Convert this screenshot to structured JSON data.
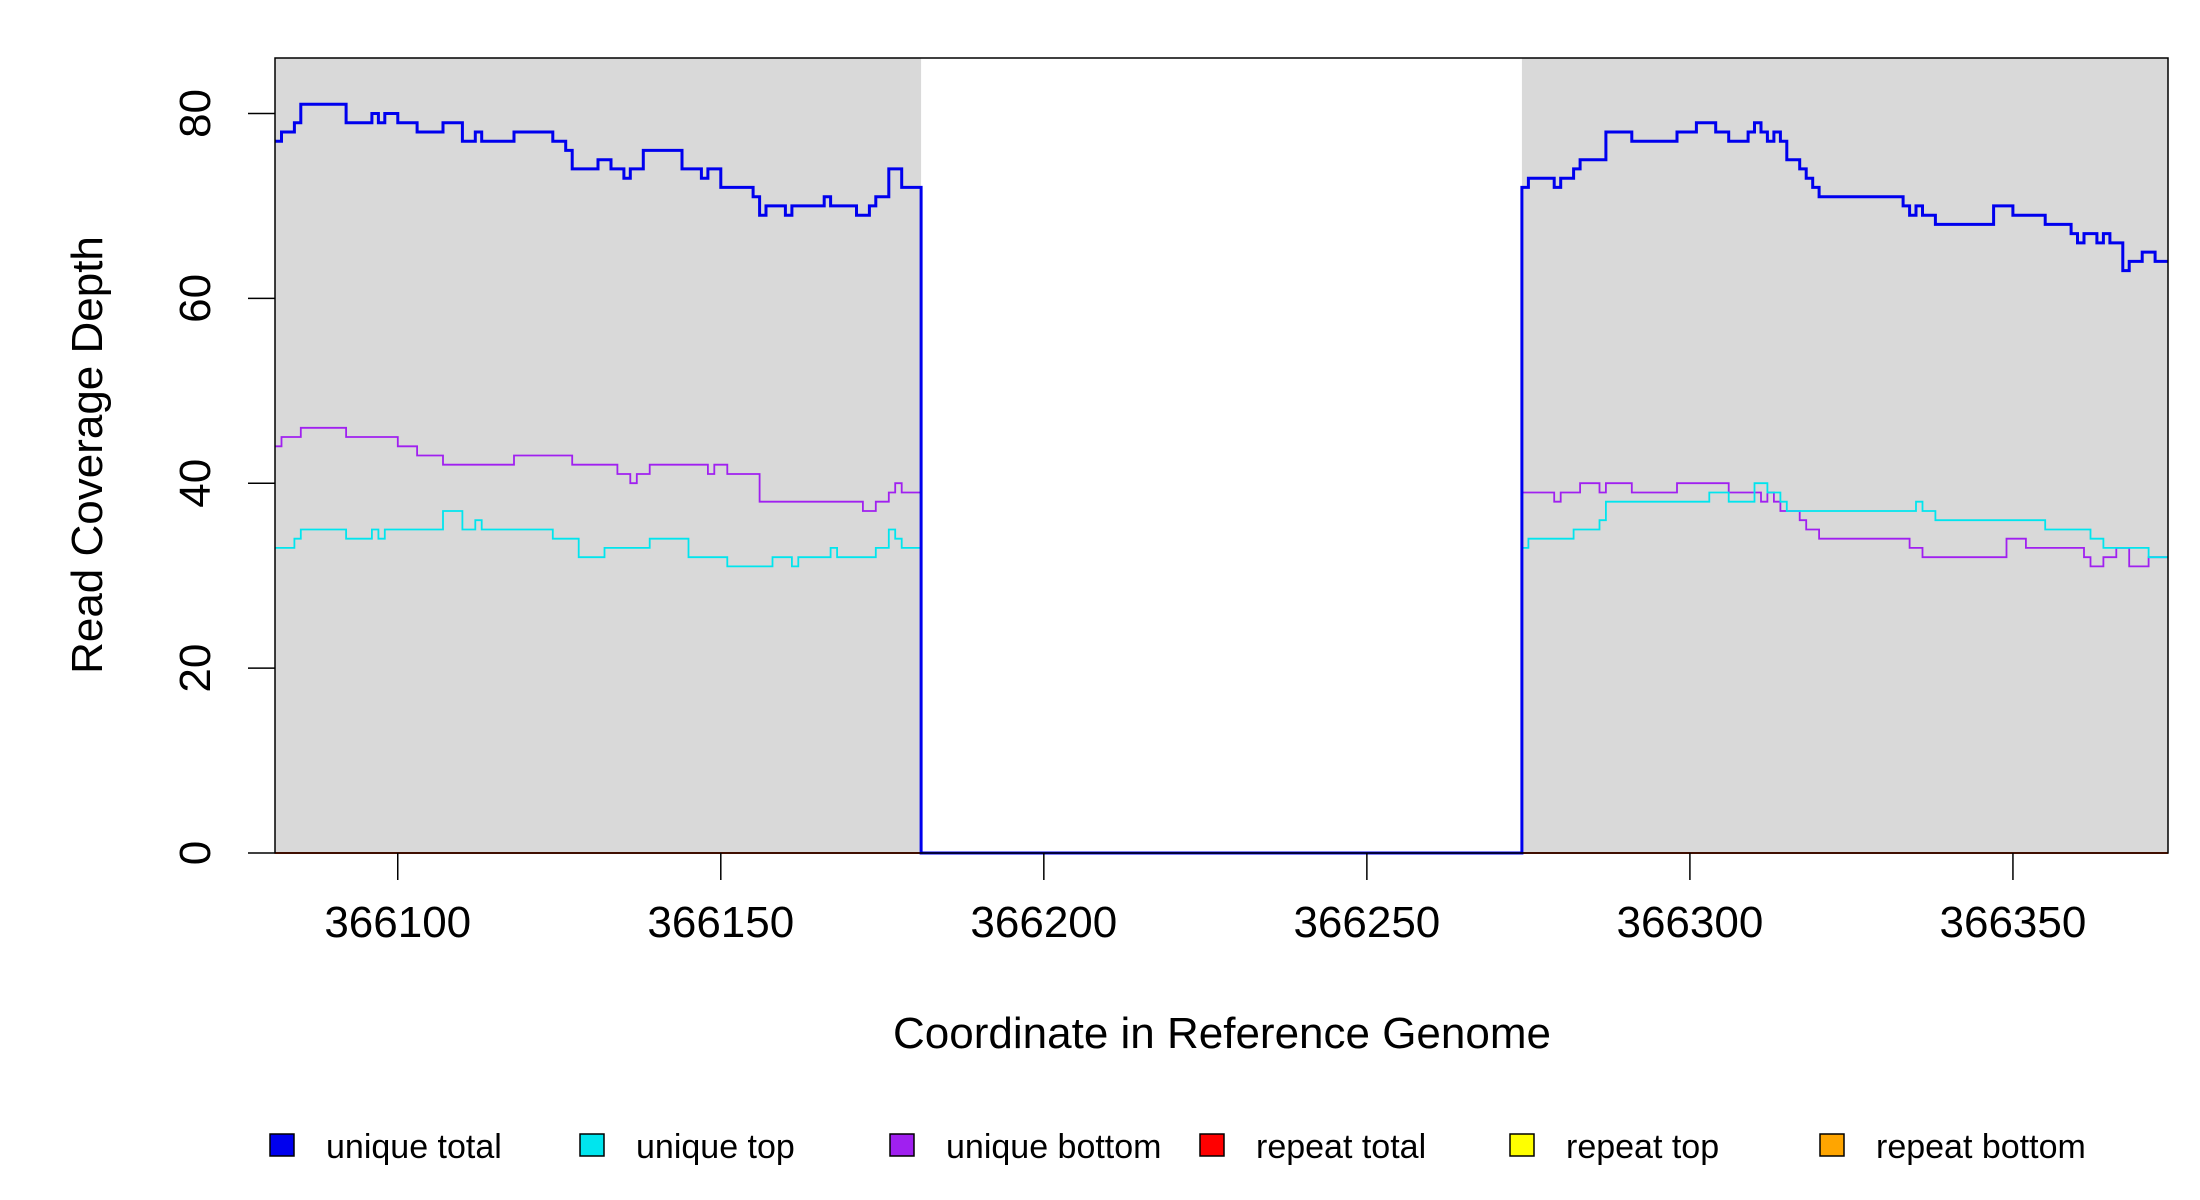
{
  "chart_data": {
    "type": "line",
    "title": "",
    "xlabel": "Coordinate in Reference Genome",
    "ylabel": "Read Coverage Depth",
    "xlim": [
      366081,
      366374
    ],
    "ylim": [
      0,
      86
    ],
    "x_ticks": [
      366100,
      366150,
      366200,
      366250,
      366300,
      366350
    ],
    "x_tick_labels": [
      "366100",
      "366150",
      "366200",
      "366250",
      "366300",
      "366350"
    ],
    "y_ticks": [
      0,
      20,
      40,
      60,
      80
    ],
    "y_tick_labels": [
      "0",
      "20",
      "40",
      "60",
      "80"
    ],
    "grid": false,
    "legend_position": "bottom",
    "background_shaded_ranges": [
      [
        366081,
        366181
      ],
      [
        366274,
        366374
      ]
    ],
    "shading_color": "#d9d9d9",
    "series": [
      {
        "name": "unique total",
        "color": "#0000ee",
        "points": [
          [
            366081,
            77
          ],
          [
            366082,
            78
          ],
          [
            366084,
            79
          ],
          [
            366085,
            81
          ],
          [
            366092,
            79
          ],
          [
            366096,
            80
          ],
          [
            366097,
            79
          ],
          [
            366098,
            80
          ],
          [
            366100,
            79
          ],
          [
            366103,
            78
          ],
          [
            366107,
            79
          ],
          [
            366110,
            77
          ],
          [
            366112,
            78
          ],
          [
            366113,
            77
          ],
          [
            366118,
            78
          ],
          [
            366124,
            77
          ],
          [
            366126,
            76
          ],
          [
            366127,
            74
          ],
          [
            366131,
            75
          ],
          [
            366133,
            74
          ],
          [
            366135,
            73
          ],
          [
            366136,
            74
          ],
          [
            366138,
            76
          ],
          [
            366144,
            74
          ],
          [
            366147,
            73
          ],
          [
            366148,
            74
          ],
          [
            366150,
            72
          ],
          [
            366155,
            71
          ],
          [
            366156,
            69
          ],
          [
            366157,
            70
          ],
          [
            366160,
            69
          ],
          [
            366161,
            70
          ],
          [
            366166,
            71
          ],
          [
            366167,
            70
          ],
          [
            366171,
            69
          ],
          [
            366173,
            70
          ],
          [
            366174,
            71
          ],
          [
            366176,
            74
          ],
          [
            366178,
            72
          ],
          [
            366180,
            72
          ],
          [
            366181,
            0
          ],
          [
            366273,
            0
          ],
          [
            366274,
            72
          ],
          [
            366275,
            73
          ],
          [
            366279,
            72
          ],
          [
            366280,
            73
          ],
          [
            366282,
            74
          ],
          [
            366283,
            75
          ],
          [
            366287,
            78
          ],
          [
            366291,
            77
          ],
          [
            366298,
            78
          ],
          [
            366301,
            79
          ],
          [
            366304,
            78
          ],
          [
            366306,
            77
          ],
          [
            366309,
            78
          ],
          [
            366310,
            79
          ],
          [
            366311,
            78
          ],
          [
            366312,
            77
          ],
          [
            366313,
            78
          ],
          [
            366314,
            77
          ],
          [
            366315,
            75
          ],
          [
            366317,
            74
          ],
          [
            366318,
            73
          ],
          [
            366319,
            72
          ],
          [
            366320,
            71
          ],
          [
            366333,
            70
          ],
          [
            366334,
            69
          ],
          [
            366335,
            70
          ],
          [
            366336,
            69
          ],
          [
            366338,
            68
          ],
          [
            366347,
            70
          ],
          [
            366350,
            69
          ],
          [
            366355,
            68
          ],
          [
            366359,
            67
          ],
          [
            366360,
            66
          ],
          [
            366361,
            67
          ],
          [
            366363,
            66
          ],
          [
            366364,
            67
          ],
          [
            366365,
            66
          ],
          [
            366367,
            63
          ],
          [
            366368,
            64
          ],
          [
            366370,
            65
          ],
          [
            366372,
            64
          ],
          [
            366374,
            64
          ]
        ]
      },
      {
        "name": "unique top",
        "color": "#00e5ee",
        "points": [
          [
            366081,
            33
          ],
          [
            366084,
            34
          ],
          [
            366085,
            35
          ],
          [
            366092,
            34
          ],
          [
            366096,
            35
          ],
          [
            366097,
            34
          ],
          [
            366098,
            35
          ],
          [
            366107,
            37
          ],
          [
            366110,
            35
          ],
          [
            366112,
            36
          ],
          [
            366113,
            35
          ],
          [
            366124,
            34
          ],
          [
            366128,
            32
          ],
          [
            366132,
            33
          ],
          [
            366139,
            34
          ],
          [
            366145,
            32
          ],
          [
            366151,
            31
          ],
          [
            366158,
            32
          ],
          [
            366161,
            31
          ],
          [
            366162,
            32
          ],
          [
            366167,
            33
          ],
          [
            366168,
            32
          ],
          [
            366174,
            33
          ],
          [
            366176,
            35
          ],
          [
            366177,
            34
          ],
          [
            366178,
            33
          ],
          [
            366181,
            0
          ],
          [
            366273,
            0
          ],
          [
            366274,
            33
          ],
          [
            366275,
            34
          ],
          [
            366282,
            35
          ],
          [
            366286,
            36
          ],
          [
            366287,
            38
          ],
          [
            366303,
            39
          ],
          [
            366306,
            38
          ],
          [
            366310,
            40
          ],
          [
            366312,
            39
          ],
          [
            366314,
            38
          ],
          [
            366315,
            37
          ],
          [
            366335,
            38
          ],
          [
            366336,
            37
          ],
          [
            366338,
            36
          ],
          [
            366355,
            35
          ],
          [
            366362,
            34
          ],
          [
            366364,
            33
          ],
          [
            366371,
            32
          ],
          [
            366374,
            32
          ]
        ]
      },
      {
        "name": "unique bottom",
        "color": "#a020f0",
        "points": [
          [
            366081,
            44
          ],
          [
            366082,
            45
          ],
          [
            366085,
            46
          ],
          [
            366092,
            45
          ],
          [
            366100,
            44
          ],
          [
            366103,
            43
          ],
          [
            366107,
            42
          ],
          [
            366118,
            43
          ],
          [
            366127,
            42
          ],
          [
            366134,
            41
          ],
          [
            366136,
            40
          ],
          [
            366137,
            41
          ],
          [
            366139,
            42
          ],
          [
            366148,
            41
          ],
          [
            366149,
            42
          ],
          [
            366151,
            41
          ],
          [
            366156,
            38
          ],
          [
            366172,
            37
          ],
          [
            366174,
            38
          ],
          [
            366176,
            39
          ],
          [
            366177,
            40
          ],
          [
            366178,
            39
          ],
          [
            366181,
            0
          ],
          [
            366273,
            0
          ],
          [
            366274,
            39
          ],
          [
            366279,
            38
          ],
          [
            366280,
            39
          ],
          [
            366283,
            40
          ],
          [
            366286,
            39
          ],
          [
            366287,
            40
          ],
          [
            366291,
            39
          ],
          [
            366298,
            40
          ],
          [
            366306,
            39
          ],
          [
            366311,
            38
          ],
          [
            366312,
            39
          ],
          [
            366313,
            38
          ],
          [
            366314,
            37
          ],
          [
            366317,
            36
          ],
          [
            366318,
            35
          ],
          [
            366320,
            34
          ],
          [
            366334,
            33
          ],
          [
            366336,
            32
          ],
          [
            366349,
            34
          ],
          [
            366352,
            33
          ],
          [
            366361,
            32
          ],
          [
            366362,
            31
          ],
          [
            366364,
            32
          ],
          [
            366366,
            33
          ],
          [
            366368,
            31
          ],
          [
            366371,
            32
          ],
          [
            366374,
            32
          ]
        ]
      },
      {
        "name": "repeat total",
        "color": "#ff0000",
        "points": [
          [
            366081,
            0
          ],
          [
            366374,
            0
          ]
        ]
      },
      {
        "name": "repeat top",
        "color": "#ffff00",
        "points": [
          [
            366081,
            0
          ],
          [
            366374,
            0
          ]
        ]
      },
      {
        "name": "repeat bottom",
        "color": "#ffa500",
        "points": [
          [
            366081,
            0
          ],
          [
            366374,
            0
          ]
        ]
      }
    ]
  }
}
